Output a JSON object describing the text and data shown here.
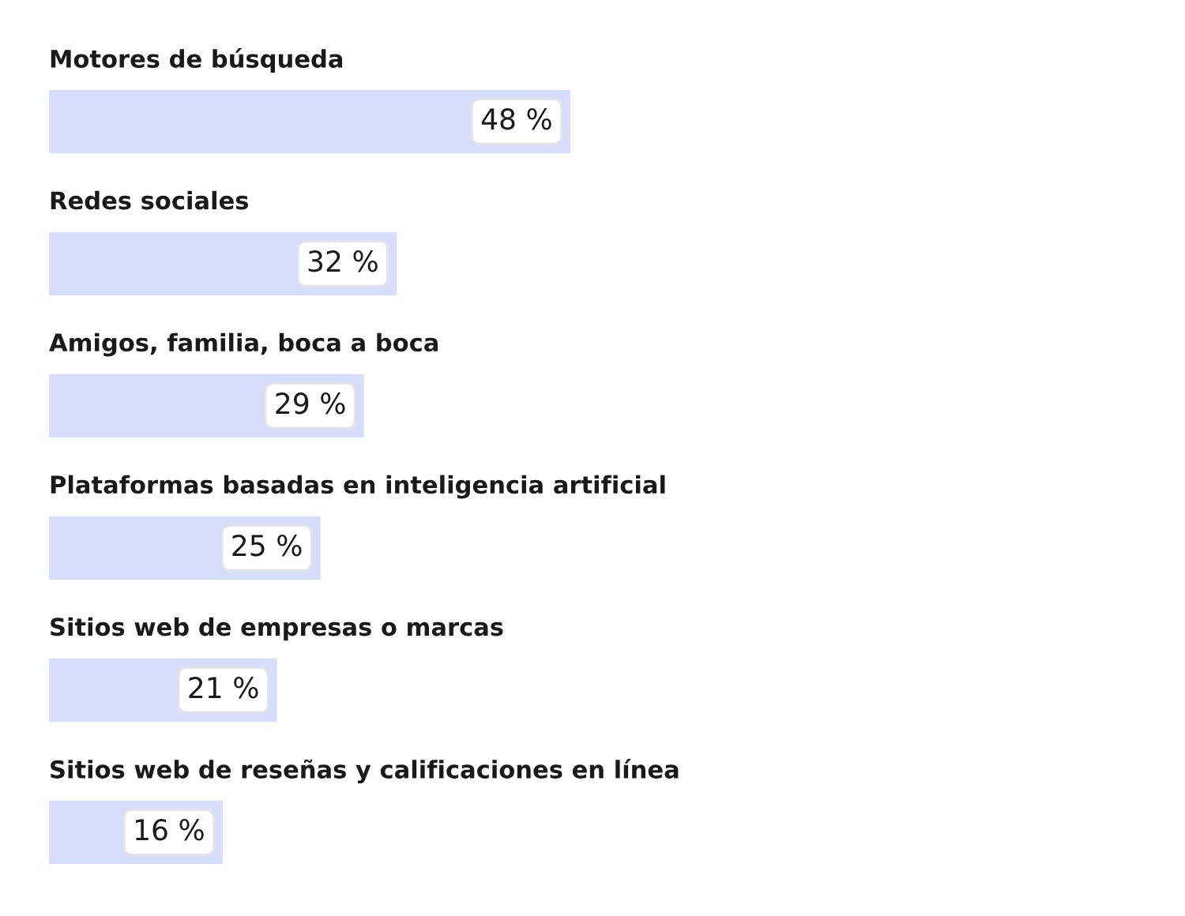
{
  "chart_data": {
    "type": "bar",
    "orientation": "horizontal",
    "categories": [
      "Motores de búsqueda",
      "Redes sociales",
      "Amigos, familia, boca a boca",
      "Plataformas basadas en inteligencia artificial",
      "Sitios web de empresas o marcas",
      "Sitios web de reseñas y calificaciones en línea"
    ],
    "values": [
      48,
      32,
      29,
      25,
      21,
      16
    ],
    "value_labels": [
      "48 %",
      "32 %",
      "29 %",
      "25 %",
      "21 %",
      "16 %"
    ],
    "color": "#d7ddfd"
  }
}
